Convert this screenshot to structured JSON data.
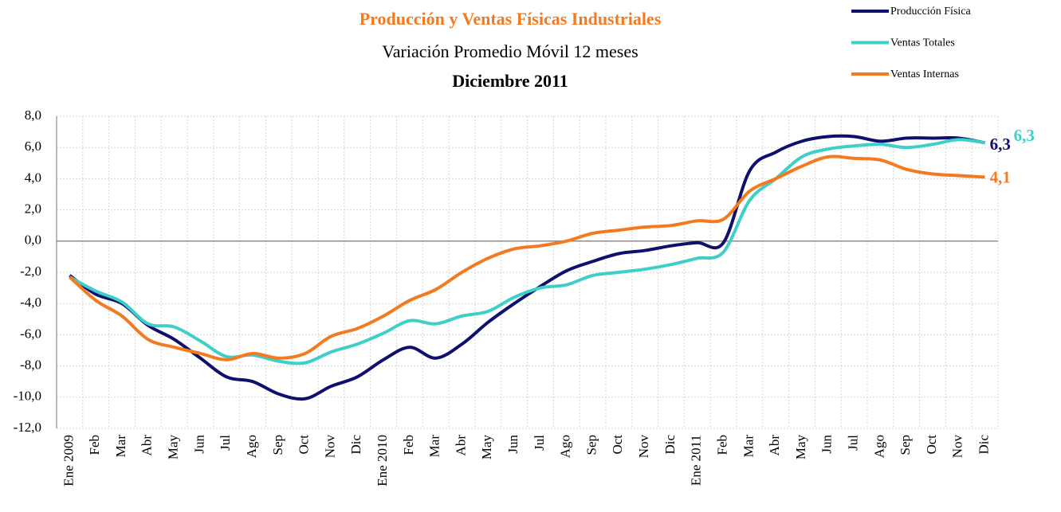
{
  "chart_data": {
    "type": "line",
    "title": "Producción y Ventas Físicas Industriales",
    "subtitle": "Variación Promedio Móvil 12 meses",
    "period": "Diciembre 2011",
    "categories": [
      "Ene 2009",
      "Feb",
      "Mar",
      "Abr",
      "May",
      "Jun",
      "Jul",
      "Ago",
      "Sep",
      "Oct",
      "Nov",
      "Dic",
      "Ene 2010",
      "Feb",
      "Mar",
      "Abr",
      "May",
      "Jun",
      "Jul",
      "Ago",
      "Sep",
      "Oct",
      "Nov",
      "Dic",
      "Ene 2011",
      "Feb",
      "Mar",
      "Abr",
      "May",
      "Jun",
      "Jul",
      "Ago",
      "Sep",
      "Oct",
      "Nov",
      "Dic"
    ],
    "series": [
      {
        "name": "Producción Física",
        "color": "#0f0f6e",
        "values": [
          -2.2,
          -3.4,
          -4.0,
          -5.4,
          -6.3,
          -7.5,
          -8.7,
          -9.0,
          -9.8,
          -10.1,
          -9.3,
          -8.7,
          -7.6,
          -6.8,
          -7.5,
          -6.6,
          -5.2,
          -4.0,
          -2.9,
          -1.9,
          -1.3,
          -0.8,
          -0.6,
          -0.3,
          -0.1,
          -0.1,
          4.5,
          5.7,
          6.4,
          6.7,
          6.7,
          6.4,
          6.6,
          6.6,
          6.6,
          6.3
        ],
        "value_labels": [
          null,
          null,
          null,
          null,
          null,
          null,
          null,
          null,
          null,
          null,
          null,
          null,
          null,
          null,
          null,
          null,
          null,
          null,
          null,
          null,
          null,
          null,
          null,
          null,
          null,
          null,
          null,
          null,
          null,
          null,
          null,
          null,
          null,
          null,
          null,
          "6,3"
        ]
      },
      {
        "name": "Ventas Totales",
        "color": "#3fcfc9",
        "values": [
          -2.3,
          -3.2,
          -3.9,
          -5.3,
          -5.5,
          -6.4,
          -7.4,
          -7.3,
          -7.7,
          -7.8,
          -7.1,
          -6.6,
          -5.9,
          -5.1,
          -5.3,
          -4.8,
          -4.5,
          -3.6,
          -3.0,
          -2.8,
          -2.2,
          -2.0,
          -1.8,
          -1.5,
          -1.1,
          -0.7,
          2.6,
          4.0,
          5.4,
          5.9,
          6.1,
          6.2,
          6.0,
          6.2,
          6.5,
          6.3
        ],
        "value_labels": [
          null,
          null,
          null,
          null,
          null,
          null,
          null,
          null,
          null,
          null,
          null,
          null,
          null,
          null,
          null,
          null,
          null,
          null,
          null,
          null,
          null,
          null,
          null,
          null,
          null,
          null,
          null,
          null,
          null,
          null,
          null,
          null,
          null,
          null,
          null,
          "6,3"
        ]
      },
      {
        "name": "Ventas Internas",
        "color": "#f47a20",
        "values": [
          -2.3,
          -3.8,
          -4.8,
          -6.3,
          -6.8,
          -7.2,
          -7.6,
          -7.2,
          -7.5,
          -7.2,
          -6.1,
          -5.6,
          -4.8,
          -3.8,
          -3.1,
          -2.0,
          -1.1,
          -0.5,
          -0.3,
          0.0,
          0.5,
          0.7,
          0.9,
          1.0,
          1.3,
          1.4,
          3.2,
          4.0,
          4.8,
          5.4,
          5.3,
          5.2,
          4.6,
          4.3,
          4.2,
          4.1
        ],
        "value_labels": [
          null,
          null,
          null,
          null,
          null,
          null,
          null,
          null,
          null,
          null,
          null,
          null,
          null,
          null,
          null,
          null,
          null,
          null,
          null,
          null,
          null,
          null,
          null,
          null,
          null,
          null,
          null,
          null,
          null,
          null,
          null,
          null,
          null,
          null,
          null,
          "4,1"
        ]
      }
    ],
    "ylim": [
      -12,
      8
    ],
    "yticks": [
      {
        "value": -12,
        "label": "-12,0"
      },
      {
        "value": -10,
        "label": "-10,0"
      },
      {
        "value": -8,
        "label": "-8,0"
      },
      {
        "value": -6,
        "label": "-6,0"
      },
      {
        "value": -4,
        "label": "-4,0"
      },
      {
        "value": -2,
        "label": "-2,0"
      },
      {
        "value": 0,
        "label": "0,0"
      },
      {
        "value": 2,
        "label": "2,0"
      },
      {
        "value": 4,
        "label": "4,0"
      },
      {
        "value": 6,
        "label": "6,0"
      },
      {
        "value": 8,
        "label": "8,0"
      }
    ],
    "grid": true
  }
}
